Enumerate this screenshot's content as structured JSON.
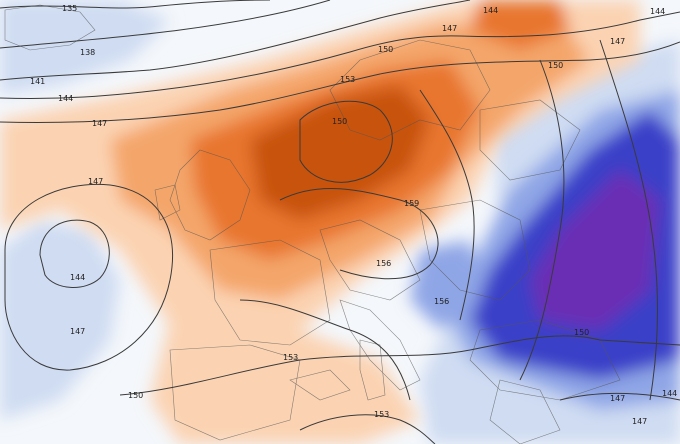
{
  "map": {
    "type": "temperature-anomaly-with-geopotential-contours",
    "colors": {
      "sea_background": "#f4f7fb",
      "warm_light": "#fbd3b2",
      "warm_mid": "#f4a66b",
      "warm_strong": "#e8762e",
      "warm_core": "#c8530f",
      "cold_light": "#cfdcf2",
      "cold_mid": "#8fa6e6",
      "cold_strong": "#3b3fc8",
      "cold_core": "#6a2fb4",
      "contour": "#3a3a3a",
      "border": "#555555"
    },
    "contour_labels": [
      {
        "id": "label-135",
        "text": "135"
      },
      {
        "id": "label-138",
        "text": "138"
      },
      {
        "id": "label-141",
        "text": "141"
      },
      {
        "id": "label-144-nw",
        "text": "144"
      },
      {
        "id": "label-147-west",
        "text": "147"
      },
      {
        "id": "label-144-top",
        "text": "144"
      },
      {
        "id": "label-147-top",
        "text": "147"
      },
      {
        "id": "label-144-ne",
        "text": "144"
      },
      {
        "id": "label-147-ne",
        "text": "147"
      },
      {
        "id": "label-150-top",
        "text": "150"
      },
      {
        "id": "label-150-scand",
        "text": "150"
      },
      {
        "id": "label-153-scand",
        "text": "153"
      },
      {
        "id": "label-150-center",
        "text": "150"
      },
      {
        "id": "label-147-atlantic",
        "text": "147"
      },
      {
        "id": "label-144-atlantic",
        "text": "144"
      },
      {
        "id": "label-147-sw",
        "text": "147"
      },
      {
        "id": "label-159",
        "text": "159"
      },
      {
        "id": "label-156",
        "text": "156"
      },
      {
        "id": "label-156-adriatic",
        "text": "156"
      },
      {
        "id": "label-153-spain",
        "text": "153"
      },
      {
        "id": "label-150-south",
        "text": "150"
      },
      {
        "id": "label-153-med",
        "text": "153"
      },
      {
        "id": "label-150-balkan",
        "text": "150"
      },
      {
        "id": "label-147-se",
        "text": "147"
      },
      {
        "id": "label-147-se2",
        "text": "147"
      },
      {
        "id": "label-144-se",
        "text": "144"
      }
    ]
  }
}
